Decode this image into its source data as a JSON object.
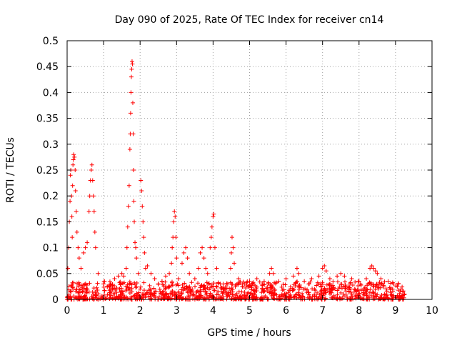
{
  "chart_data": {
    "type": "scatter",
    "title": "Day 090 of 2025, Rate Of TEC Index for receiver cn14",
    "xlabel": "GPS time / hours",
    "ylabel": "ROTI / TECUs",
    "xlim": [
      0,
      10
    ],
    "ylim": [
      0,
      0.5
    ],
    "xticks": [
      0,
      1,
      2,
      3,
      4,
      5,
      6,
      7,
      8,
      9,
      10
    ],
    "xtick_labels": [
      "0",
      "1",
      "2",
      "3",
      "4",
      "5",
      "6",
      "7",
      "8",
      "9",
      "10"
    ],
    "yticks": [
      0,
      0.05,
      0.1,
      0.15,
      0.2,
      0.25,
      0.3,
      0.35,
      0.4,
      0.45,
      0.5
    ],
    "ytick_labels": [
      "0",
      "0.05",
      "0.1",
      "0.15",
      "0.2",
      "0.25",
      "0.3",
      "0.35",
      "0.4",
      "0.45",
      "0.5"
    ],
    "grid": true,
    "marker": "+",
    "series_color": "#ff0000",
    "series": [
      {
        "name": "ROTI",
        "points": [
          [
            0.02,
            0.06
          ],
          [
            0.04,
            0.1
          ],
          [
            0.06,
            0.15
          ],
          [
            0.08,
            0.19
          ],
          [
            0.09,
            0.24
          ],
          [
            0.1,
            0.25
          ],
          [
            0.12,
            0.2
          ],
          [
            0.13,
            0.16
          ],
          [
            0.14,
            0.12
          ],
          [
            0.15,
            0.22
          ],
          [
            0.16,
            0.26
          ],
          [
            0.17,
            0.27
          ],
          [
            0.18,
            0.28
          ],
          [
            0.2,
            0.275
          ],
          [
            0.22,
            0.25
          ],
          [
            0.23,
            0.21
          ],
          [
            0.25,
            0.17
          ],
          [
            0.27,
            0.13
          ],
          [
            0.3,
            0.1
          ],
          [
            0.33,
            0.08
          ],
          [
            0.38,
            0.06
          ],
          [
            0.45,
            0.09
          ],
          [
            0.5,
            0.1
          ],
          [
            0.55,
            0.11
          ],
          [
            0.6,
            0.17
          ],
          [
            0.62,
            0.2
          ],
          [
            0.64,
            0.23
          ],
          [
            0.66,
            0.25
          ],
          [
            0.68,
            0.26
          ],
          [
            0.7,
            0.23
          ],
          [
            0.72,
            0.2
          ],
          [
            0.74,
            0.17
          ],
          [
            0.76,
            0.13
          ],
          [
            0.78,
            0.1
          ],
          [
            0.85,
            0.05
          ],
          [
            1.0,
            0.03
          ],
          [
            1.1,
            0.025
          ],
          [
            1.2,
            0.03
          ],
          [
            1.3,
            0.04
          ],
          [
            1.4,
            0.045
          ],
          [
            1.5,
            0.05
          ],
          [
            1.55,
            0.045
          ],
          [
            1.62,
            0.06
          ],
          [
            1.64,
            0.1
          ],
          [
            1.66,
            0.14
          ],
          [
            1.68,
            0.18
          ],
          [
            1.7,
            0.22
          ],
          [
            1.72,
            0.29
          ],
          [
            1.73,
            0.32
          ],
          [
            1.74,
            0.36
          ],
          [
            1.75,
            0.4
          ],
          [
            1.76,
            0.43
          ],
          [
            1.77,
            0.445
          ],
          [
            1.78,
            0.46
          ],
          [
            1.79,
            0.455
          ],
          [
            1.8,
            0.38
          ],
          [
            1.81,
            0.32
          ],
          [
            1.82,
            0.25
          ],
          [
            1.83,
            0.19
          ],
          [
            1.84,
            0.15
          ],
          [
            1.86,
            0.11
          ],
          [
            1.88,
            0.1
          ],
          [
            1.9,
            0.08
          ],
          [
            1.95,
            0.05
          ],
          [
            2.0,
            0.02
          ],
          [
            2.02,
            0.23
          ],
          [
            2.04,
            0.21
          ],
          [
            2.06,
            0.18
          ],
          [
            2.08,
            0.15
          ],
          [
            2.1,
            0.12
          ],
          [
            2.12,
            0.09
          ],
          [
            2.15,
            0.06
          ],
          [
            2.2,
            0.065
          ],
          [
            2.3,
            0.05
          ],
          [
            2.4,
            0.04
          ],
          [
            2.5,
            0.03
          ],
          [
            2.6,
            0.035
          ],
          [
            2.7,
            0.045
          ],
          [
            2.8,
            0.05
          ],
          [
            2.86,
            0.07
          ],
          [
            2.88,
            0.1
          ],
          [
            2.9,
            0.12
          ],
          [
            2.92,
            0.15
          ],
          [
            2.94,
            0.17
          ],
          [
            2.96,
            0.16
          ],
          [
            2.98,
            0.12
          ],
          [
            3.0,
            0.08
          ],
          [
            3.05,
            0.04
          ],
          [
            3.15,
            0.07
          ],
          [
            3.2,
            0.09
          ],
          [
            3.25,
            0.1
          ],
          [
            3.3,
            0.08
          ],
          [
            3.35,
            0.05
          ],
          [
            3.5,
            0.04
          ],
          [
            3.6,
            0.06
          ],
          [
            3.65,
            0.09
          ],
          [
            3.7,
            0.1
          ],
          [
            3.75,
            0.08
          ],
          [
            3.8,
            0.06
          ],
          [
            3.85,
            0.05
          ],
          [
            3.92,
            0.1
          ],
          [
            3.95,
            0.12
          ],
          [
            3.97,
            0.14
          ],
          [
            4.0,
            0.16
          ],
          [
            4.02,
            0.165
          ],
          [
            4.05,
            0.1
          ],
          [
            4.1,
            0.06
          ],
          [
            4.2,
            0.03
          ],
          [
            4.3,
            0.02
          ],
          [
            4.4,
            0.03
          ],
          [
            4.48,
            0.06
          ],
          [
            4.5,
            0.09
          ],
          [
            4.52,
            0.12
          ],
          [
            4.55,
            0.1
          ],
          [
            4.58,
            0.07
          ],
          [
            4.7,
            0.04
          ],
          [
            4.8,
            0.03
          ],
          [
            5.0,
            0.035
          ],
          [
            5.2,
            0.04
          ],
          [
            5.4,
            0.035
          ],
          [
            5.55,
            0.05
          ],
          [
            5.6,
            0.06
          ],
          [
            5.65,
            0.05
          ],
          [
            5.8,
            0.035
          ],
          [
            6.0,
            0.04
          ],
          [
            6.2,
            0.045
          ],
          [
            6.3,
            0.06
          ],
          [
            6.35,
            0.05
          ],
          [
            6.5,
            0.035
          ],
          [
            6.7,
            0.04
          ],
          [
            6.9,
            0.045
          ],
          [
            7.0,
            0.06
          ],
          [
            7.05,
            0.065
          ],
          [
            7.1,
            0.055
          ],
          [
            7.2,
            0.04
          ],
          [
            7.4,
            0.045
          ],
          [
            7.5,
            0.05
          ],
          [
            7.6,
            0.045
          ],
          [
            7.8,
            0.04
          ],
          [
            8.0,
            0.035
          ],
          [
            8.2,
            0.04
          ],
          [
            8.3,
            0.06
          ],
          [
            8.35,
            0.065
          ],
          [
            8.4,
            0.06
          ],
          [
            8.45,
            0.055
          ],
          [
            8.5,
            0.05
          ],
          [
            8.6,
            0.04
          ],
          [
            8.8,
            0.035
          ],
          [
            8.95,
            0.03
          ],
          [
            9.05,
            0.025
          ],
          [
            9.15,
            0.02
          ],
          [
            9.25,
            0.01
          ]
        ]
      }
    ]
  }
}
